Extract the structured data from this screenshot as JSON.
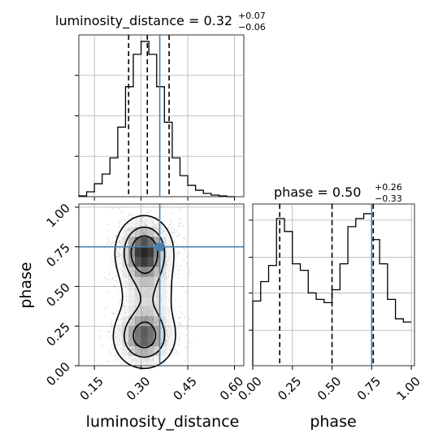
{
  "chart_data": [
    {
      "type": "bar",
      "panel": "luminosity_distance-marginal",
      "title": {
        "param": "luminosity_distance",
        "median": "0.32",
        "plus": "+0.07",
        "minus": "−0.06"
      },
      "bin_edges": [
        0.1,
        0.125,
        0.15,
        0.175,
        0.2,
        0.225,
        0.25,
        0.275,
        0.3,
        0.325,
        0.35,
        0.375,
        0.4,
        0.425,
        0.45,
        0.475,
        0.5,
        0.525,
        0.55,
        0.575,
        0.6
      ],
      "counts": [
        0.5,
        3,
        8,
        14,
        24,
        43,
        68,
        88,
        96,
        88,
        68,
        46,
        24,
        13,
        7,
        4,
        2,
        1,
        0.5,
        0
      ],
      "ylim": [
        0,
        100
      ],
      "xlim": [
        0.1,
        0.63
      ],
      "quantiles": [
        0.26,
        0.32,
        0.39
      ],
      "truth": 0.36,
      "grid": true
    },
    {
      "type": "heatmap",
      "panel": "luminosity_distance-phase-joint",
      "xlabel": "luminosity_distance",
      "ylabel": "phase",
      "xlim": [
        0.1,
        0.63
      ],
      "ylim": [
        0.0,
        1.02
      ],
      "xticks": [
        "0.15",
        "0.30",
        "0.45",
        "0.60"
      ],
      "yticks": [
        "0.00",
        "0.25",
        "0.50",
        "0.75",
        "1.00"
      ],
      "truth": {
        "x": 0.36,
        "y": 0.75
      },
      "peaks": [
        {
          "x": 0.31,
          "y": 0.72
        },
        {
          "x": 0.31,
          "y": 0.18
        }
      ],
      "grid": true
    },
    {
      "type": "bar",
      "panel": "phase-marginal",
      "title": {
        "param": "phase",
        "median": "0.50",
        "plus": "+0.26",
        "minus": "−0.33"
      },
      "xlabel": "phase",
      "bin_edges": [
        0.0,
        0.05,
        0.1,
        0.15,
        0.2,
        0.25,
        0.3,
        0.35,
        0.4,
        0.45,
        0.5,
        0.55,
        0.6,
        0.65,
        0.7,
        0.75,
        0.8,
        0.85,
        0.9,
        0.95,
        1.0
      ],
      "counts": [
        40,
        52,
        62,
        91,
        83,
        63,
        59,
        45,
        41,
        39,
        47,
        63,
        86,
        91,
        94,
        78,
        63,
        41,
        29,
        27
      ],
      "ylim": [
        0,
        100
      ],
      "xlim": [
        0.0,
        1.02
      ],
      "xticks": [
        "0.00",
        "0.25",
        "0.50",
        "0.75",
        "1.00"
      ],
      "quantiles": [
        0.17,
        0.5,
        0.76
      ],
      "truth": 0.75,
      "grid": true
    }
  ]
}
